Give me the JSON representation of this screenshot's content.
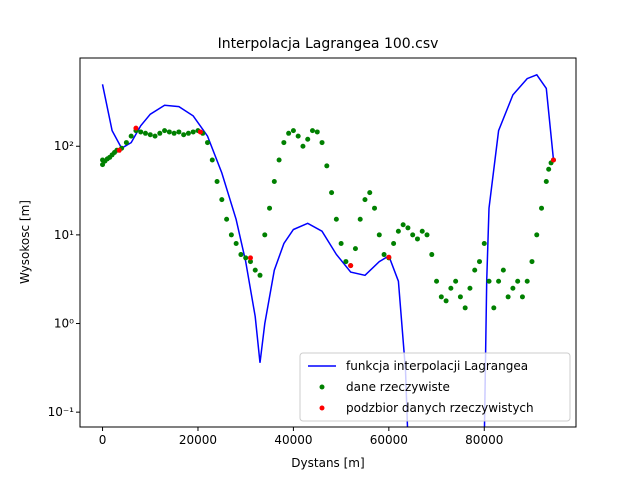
{
  "chart_data": {
    "type": "scatter",
    "title": "Interpolacja Lagrangea 100.csv",
    "xlabel": "Dystans [m]",
    "ylabel": "Wysokosc [m]",
    "xlim": [
      -4725,
      99225
    ],
    "ylim": [
      0.068,
      990
    ],
    "log_y": true,
    "xticks": [
      0,
      20000,
      40000,
      60000,
      80000
    ],
    "yticks": [
      {
        "value": 0.1,
        "label": "10⁻¹"
      },
      {
        "value": 1,
        "label": "10⁰"
      },
      {
        "value": 10,
        "label": "10¹"
      },
      {
        "value": 100,
        "label": "10²"
      }
    ],
    "legend_position": "lower right",
    "series": [
      {
        "name": "funkcja interpolacji Lagrangea",
        "kind": "line",
        "color": "#0000ff",
        "x": [
          0,
          2000,
          4000,
          6000,
          8000,
          10000,
          13000,
          16000,
          19000,
          22000,
          25000,
          28000,
          30000,
          32000,
          33000,
          34000,
          36000,
          38000,
          40000,
          43000,
          46000,
          49000,
          52000,
          55000,
          58000,
          60000,
          62000,
          63500,
          64000,
          72000,
          80000,
          80500,
          81000,
          83000,
          86000,
          89000,
          91000,
          93000,
          94500
        ],
        "values": [
          500,
          150,
          95,
          110,
          170,
          230,
          290,
          280,
          220,
          130,
          50,
          15,
          5,
          1.2,
          0.36,
          1.0,
          4,
          8,
          11.5,
          13.5,
          11,
          6,
          3.8,
          3.5,
          5,
          5.8,
          3,
          0.3,
          0.05,
          null,
          0.05,
          3,
          20,
          150,
          380,
          580,
          640,
          450,
          70
        ]
      },
      {
        "name": "dane rzeczywiste",
        "kind": "scatter",
        "color": "#008000",
        "x": [
          0,
          0,
          500,
          1000,
          1500,
          2000,
          2500,
          3000,
          4000,
          5000,
          6000,
          7000,
          8000,
          9000,
          10000,
          11000,
          12000,
          13000,
          14000,
          15000,
          16000,
          17000,
          18000,
          19000,
          20000,
          21000,
          22000,
          23000,
          24000,
          25000,
          26000,
          27000,
          28000,
          29000,
          30000,
          31000,
          32000,
          33000,
          34000,
          35000,
          36000,
          37000,
          38000,
          39000,
          40000,
          41000,
          42000,
          43000,
          44000,
          45000,
          46000,
          47000,
          48000,
          49000,
          50000,
          51000,
          52000,
          53000,
          54000,
          55000,
          56000,
          57000,
          58000,
          59000,
          60000,
          61000,
          62000,
          63000,
          64000,
          65000,
          66000,
          67000,
          68000,
          69000,
          70000,
          71000,
          72000,
          73000,
          74000,
          75000,
          76000,
          77000,
          78000,
          79000,
          80000,
          81000,
          82000,
          83000,
          84000,
          85000,
          86000,
          87000,
          88000,
          89000,
          90000,
          91000,
          92000,
          93000,
          93500,
          94000,
          94500
        ],
        "values": [
          62,
          70,
          68,
          72,
          75,
          80,
          85,
          90,
          95,
          110,
          130,
          150,
          145,
          140,
          135,
          130,
          140,
          150,
          145,
          140,
          145,
          135,
          140,
          145,
          150,
          140,
          110,
          70,
          40,
          25,
          15,
          10,
          8,
          6,
          5.5,
          5,
          4,
          3.5,
          10,
          20,
          40,
          70,
          110,
          140,
          150,
          130,
          100,
          120,
          150,
          145,
          110,
          60,
          30,
          15,
          8,
          5,
          4.5,
          7,
          15,
          25,
          30,
          20,
          10,
          6,
          5.5,
          8,
          11,
          13,
          12,
          10,
          9,
          11,
          10,
          6,
          3,
          2,
          1.8,
          2.5,
          3,
          2,
          1.5,
          2.5,
          4,
          5,
          8,
          3,
          1.5,
          3,
          4,
          2,
          2.5,
          3,
          2,
          3,
          5,
          10,
          20,
          40,
          55,
          65,
          70
        ]
      },
      {
        "name": "podzbior danych rzeczywistych",
        "kind": "scatter",
        "color": "#ff0000",
        "x": [
          3500,
          7000,
          20500,
          31000,
          52000,
          60000,
          94500
        ],
        "values": [
          90,
          160,
          145,
          5.5,
          4.5,
          5.6,
          70
        ]
      }
    ]
  }
}
